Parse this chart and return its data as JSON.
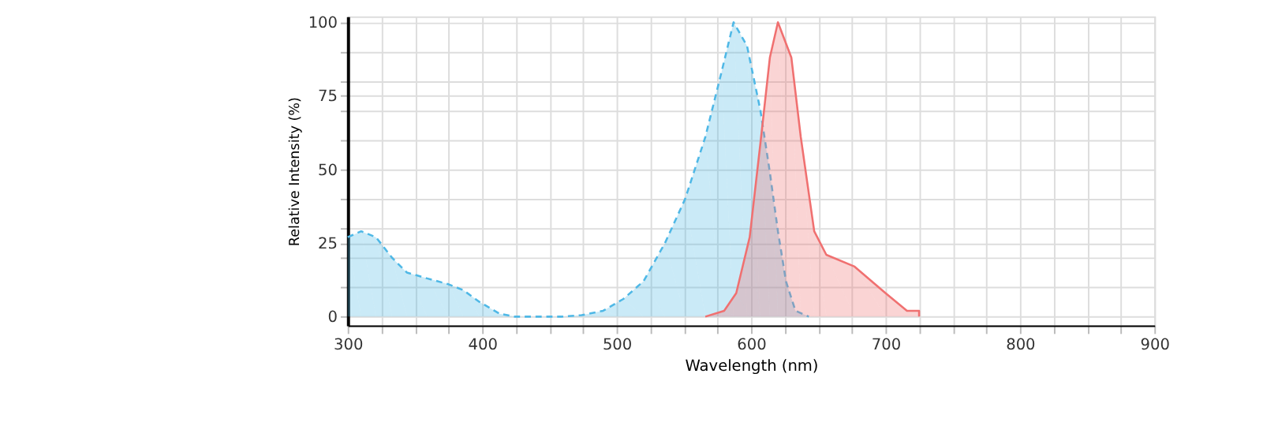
{
  "chart_data": {
    "type": "area",
    "xlabel": "Wavelength (nm)",
    "ylabel": "Relative Intensity (%)",
    "xlim": [
      300,
      900
    ],
    "ylim": [
      -3,
      102
    ],
    "xticks": [
      300,
      {
        "value": 325,
        "label": null
      },
      {
        "value": 350,
        "label": null
      },
      {
        "value": 375,
        "label": null
      },
      400,
      {
        "value": 425,
        "label": null
      },
      {
        "value": 450,
        "label": null
      },
      {
        "value": 475,
        "label": null
      },
      500,
      {
        "value": 525,
        "label": null
      },
      {
        "value": 550,
        "label": null
      },
      {
        "value": 575,
        "label": null
      },
      600,
      {
        "value": 625,
        "label": null
      },
      {
        "value": 650,
        "label": null
      },
      {
        "value": 675,
        "label": null
      },
      700,
      {
        "value": 725,
        "label": null
      },
      {
        "value": 750,
        "label": null
      },
      {
        "value": 775,
        "label": null
      },
      800,
      {
        "value": 825,
        "label": null
      },
      {
        "value": 850,
        "label": null
      },
      {
        "value": 875,
        "label": null
      },
      900
    ],
    "yticks": [
      0,
      {
        "value": 10,
        "label": null
      },
      {
        "value": 20,
        "label": null
      },
      25,
      {
        "value": 30,
        "label": null
      },
      {
        "value": 40,
        "label": null
      },
      50,
      {
        "value": 60,
        "label": null
      },
      {
        "value": 70,
        "label": null
      },
      75,
      {
        "value": 80,
        "label": null
      },
      {
        "value": 90,
        "label": null
      },
      100
    ],
    "grid": true,
    "legend": false,
    "series": [
      {
        "color": "#4fb8e6",
        "line_style": "dashed",
        "x": [
          300,
          310,
          321,
          333,
          344,
          359,
          375,
          386,
          398,
          413,
          424,
          459,
          474,
          490,
          505,
          520,
          536,
          551,
          566,
          578,
          587,
          597,
          607,
          614,
          620,
          626,
          633,
          643
        ],
        "values": [
          27,
          29,
          27,
          20,
          15,
          13,
          11,
          9,
          5,
          1,
          0,
          0,
          0.5,
          2,
          6,
          12,
          25,
          40,
          61,
          83,
          100,
          92,
          70,
          49,
          29,
          12,
          2,
          0
        ]
      },
      {
        "color": "#f07070",
        "line_style": "solid",
        "x": [
          566,
          580,
          589,
          599,
          607,
          614,
          620,
          630,
          637,
          647,
          656,
          677,
          700,
          716,
          725,
          725
        ],
        "values": [
          0,
          2,
          8,
          27,
          59,
          88,
          100,
          88,
          61,
          29,
          21,
          17,
          8,
          2,
          2,
          0
        ]
      }
    ]
  }
}
